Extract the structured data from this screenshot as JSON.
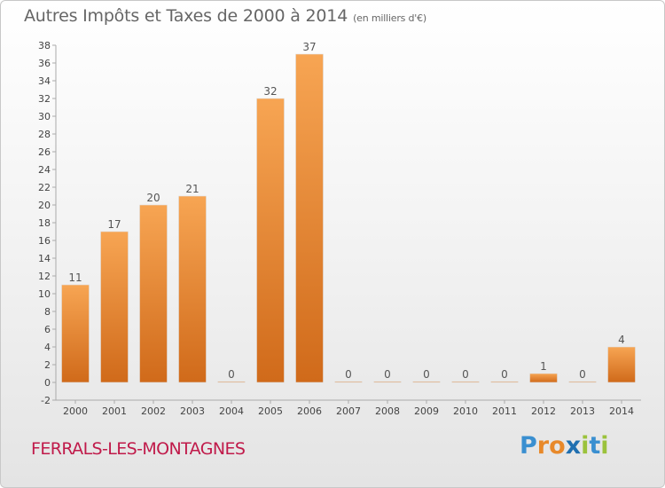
{
  "title": "Autres Impôts et Taxes de 2000 à 2014",
  "subtitle": "(en milliers d'€)",
  "commune": "FERRALS-LES-MONTAGNES",
  "logo": {
    "letters": [
      "P",
      "r",
      "o",
      "x",
      "i",
      "t",
      "i"
    ],
    "colors": [
      "#3a8fd0",
      "#e8892a",
      "#e8892a",
      "#1f6fb0",
      "#9bc23c",
      "#3a8fd0",
      "#9bc23c"
    ]
  },
  "colors": {
    "bar_top": "#f7a553",
    "bar_bottom": "#d06a1a",
    "commune": "#c01a4a",
    "text": "#555555"
  },
  "chart_data": {
    "type": "bar",
    "categories": [
      "2000",
      "2001",
      "2002",
      "2003",
      "2004",
      "2005",
      "2006",
      "2007",
      "2008",
      "2009",
      "2010",
      "2011",
      "2012",
      "2013",
      "2014"
    ],
    "values": [
      11,
      17,
      20,
      21,
      0,
      32,
      37,
      0,
      0,
      0,
      0,
      0,
      1,
      0,
      4
    ],
    "data_labels": [
      "11",
      "17",
      "20",
      "21",
      "0",
      "32",
      "37",
      "0",
      "0",
      "0",
      "0",
      "0",
      "1",
      "0",
      "4"
    ],
    "yticks": [
      "-2",
      "0",
      "2",
      "4",
      "6",
      "8",
      "10",
      "12",
      "14",
      "16",
      "18",
      "20",
      "22",
      "24",
      "26",
      "28",
      "30",
      "32",
      "34",
      "36",
      "38"
    ],
    "ylim": [
      -2,
      38
    ],
    "grid": false
  }
}
